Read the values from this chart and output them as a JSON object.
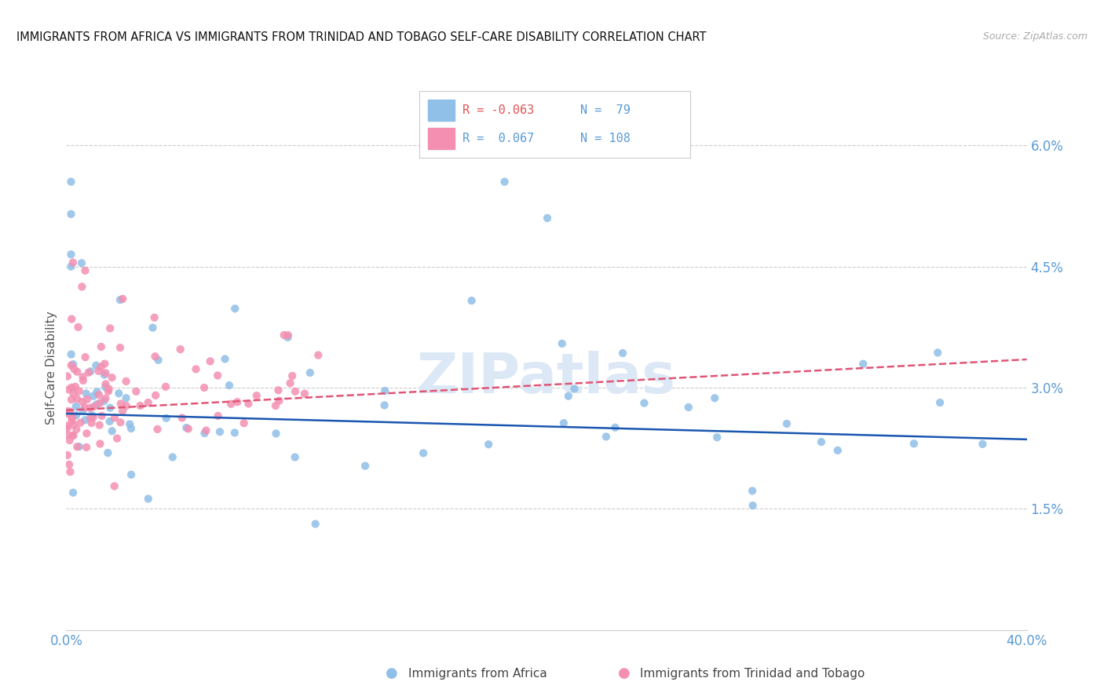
{
  "title": "IMMIGRANTS FROM AFRICA VS IMMIGRANTS FROM TRINIDAD AND TOBAGO SELF-CARE DISABILITY CORRELATION CHART",
  "source": "Source: ZipAtlas.com",
  "ylabel": "Self-Care Disability",
  "ytick_labels": [
    "1.5%",
    "3.0%",
    "4.5%",
    "6.0%"
  ],
  "ytick_values": [
    1.5,
    3.0,
    4.5,
    6.0
  ],
  "xlim": [
    0.0,
    40.0
  ],
  "ylim": [
    0.0,
    6.5
  ],
  "africa_color": "#90bfe8",
  "africa_line_color": "#1a56b0",
  "trinidad_color": "#f48fb1",
  "trinidad_line_color": "#e05575",
  "africa_R": -0.063,
  "africa_N": 79,
  "trinidad_R": 0.067,
  "trinidad_N": 108,
  "background_color": "#ffffff",
  "grid_color": "#cccccc",
  "tick_color": "#5b9bd5",
  "watermark": "ZIPatlas",
  "watermark_color": "#dce8f5",
  "legend_R1": "R = -0.063",
  "legend_N1": "N =  79",
  "legend_R2": "R =  0.067",
  "legend_N2": "N = 108",
  "bottom_label1": "Immigrants from Africa",
  "bottom_label2": "Immigrants from Trinidad and Tobago"
}
